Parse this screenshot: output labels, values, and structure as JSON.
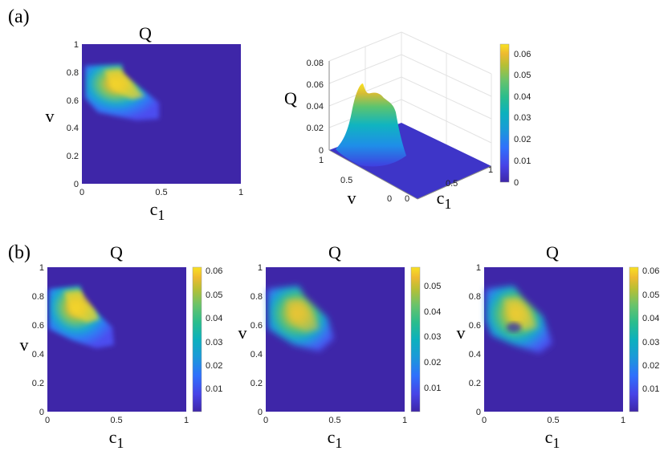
{
  "panel_labels": [
    "(a)",
    "(b)"
  ],
  "colors": {
    "background": "#3e26a8",
    "colormap": [
      "#3e26a8",
      "#4743e6",
      "#2f70fc",
      "#1a9ad8",
      "#0cb1bd",
      "#2bbd8c",
      "#6bc36a",
      "#b8bf34",
      "#eeba30",
      "#f9e121"
    ]
  },
  "chart_data": [
    {
      "id": "a-heatmap",
      "type": "heatmap",
      "title": "Q",
      "xlabel": "c",
      "xlabel_sub": "1",
      "ylabel": "v",
      "xlim": [
        0,
        1
      ],
      "ylim": [
        0,
        1
      ],
      "xticks": [
        "0",
        "0.5",
        "1"
      ],
      "yticks": [
        "0",
        "0.2",
        "0.4",
        "0.6",
        "0.8",
        "1"
      ],
      "peak": 0.062,
      "support": {
        "c1_max": 0.5,
        "v_min": 0.4,
        "v_max": 0.85
      }
    },
    {
      "id": "a-surface",
      "type": "surface",
      "zlabel": "Q",
      "xlabel": "c",
      "xlabel_sub": "1",
      "ylabel": "v",
      "zticks": [
        "0",
        "0.02",
        "0.04",
        "0.06",
        "0.08"
      ],
      "xticks": [
        "0",
        "0.5",
        "1"
      ],
      "yticks": [
        "0",
        "0.5",
        "1"
      ],
      "colorbar_ticks": [
        "0",
        "0.01",
        "0.02",
        "0.03",
        "0.04",
        "0.05",
        "0.06"
      ],
      "colorbar_max": 0.065
    },
    {
      "id": "b1",
      "type": "heatmap",
      "title": "Q",
      "xlabel": "c",
      "xlabel_sub": "1",
      "ylabel": "v",
      "xlim": [
        0,
        1
      ],
      "ylim": [
        0,
        1
      ],
      "xticks": [
        "0",
        "0.5",
        "1"
      ],
      "yticks": [
        "0",
        "0.2",
        "0.4",
        "0.6",
        "0.8",
        "1"
      ],
      "colorbar_ticks": [
        "0.01",
        "0.02",
        "0.03",
        "0.04",
        "0.05",
        "0.06"
      ],
      "colorbar_max": 0.063
    },
    {
      "id": "b2",
      "type": "heatmap",
      "title": "Q",
      "xlabel": "c",
      "xlabel_sub": "1",
      "ylabel": "v",
      "xlim": [
        0,
        1
      ],
      "ylim": [
        0,
        1
      ],
      "xticks": [
        "0",
        "0.5",
        "1"
      ],
      "yticks": [
        "0",
        "0.2",
        "0.4",
        "0.6",
        "0.8",
        "1"
      ],
      "colorbar_ticks": [
        "0.01",
        "0.02",
        "0.03",
        "0.04",
        "0.05"
      ],
      "colorbar_max": 0.058
    },
    {
      "id": "b3",
      "type": "heatmap",
      "title": "Q",
      "xlabel": "c",
      "xlabel_sub": "1",
      "ylabel": "v",
      "xlim": [
        0,
        1
      ],
      "ylim": [
        0,
        1
      ],
      "xticks": [
        "0",
        "0.5",
        "1"
      ],
      "yticks": [
        "0",
        "0.2",
        "0.4",
        "0.6",
        "0.8",
        "1"
      ],
      "colorbar_ticks": [
        "0.01",
        "0.02",
        "0.03",
        "0.04",
        "0.05",
        "0.06"
      ],
      "colorbar_max": 0.063
    }
  ]
}
